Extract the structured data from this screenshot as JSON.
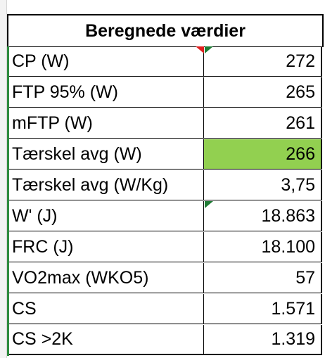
{
  "header": {
    "title": "Beregnede værdier"
  },
  "table": {
    "rows": [
      [
        "CP (W)",
        "272"
      ],
      [
        "FTP 95% (W)",
        "265"
      ],
      [
        "mFTP (W)",
        "261"
      ],
      [
        "Tærskel avg (W)",
        "266"
      ],
      [
        "Tærskel avg (W/Kg)",
        "3,75"
      ],
      [
        "W' (J)",
        "18.863"
      ],
      [
        "FRC (J)",
        "18.100"
      ],
      [
        "VO2max (WKO5)",
        "57"
      ],
      [
        "CS",
        "1.571"
      ],
      [
        "CS >2K",
        "1.319"
      ]
    ]
  }
}
